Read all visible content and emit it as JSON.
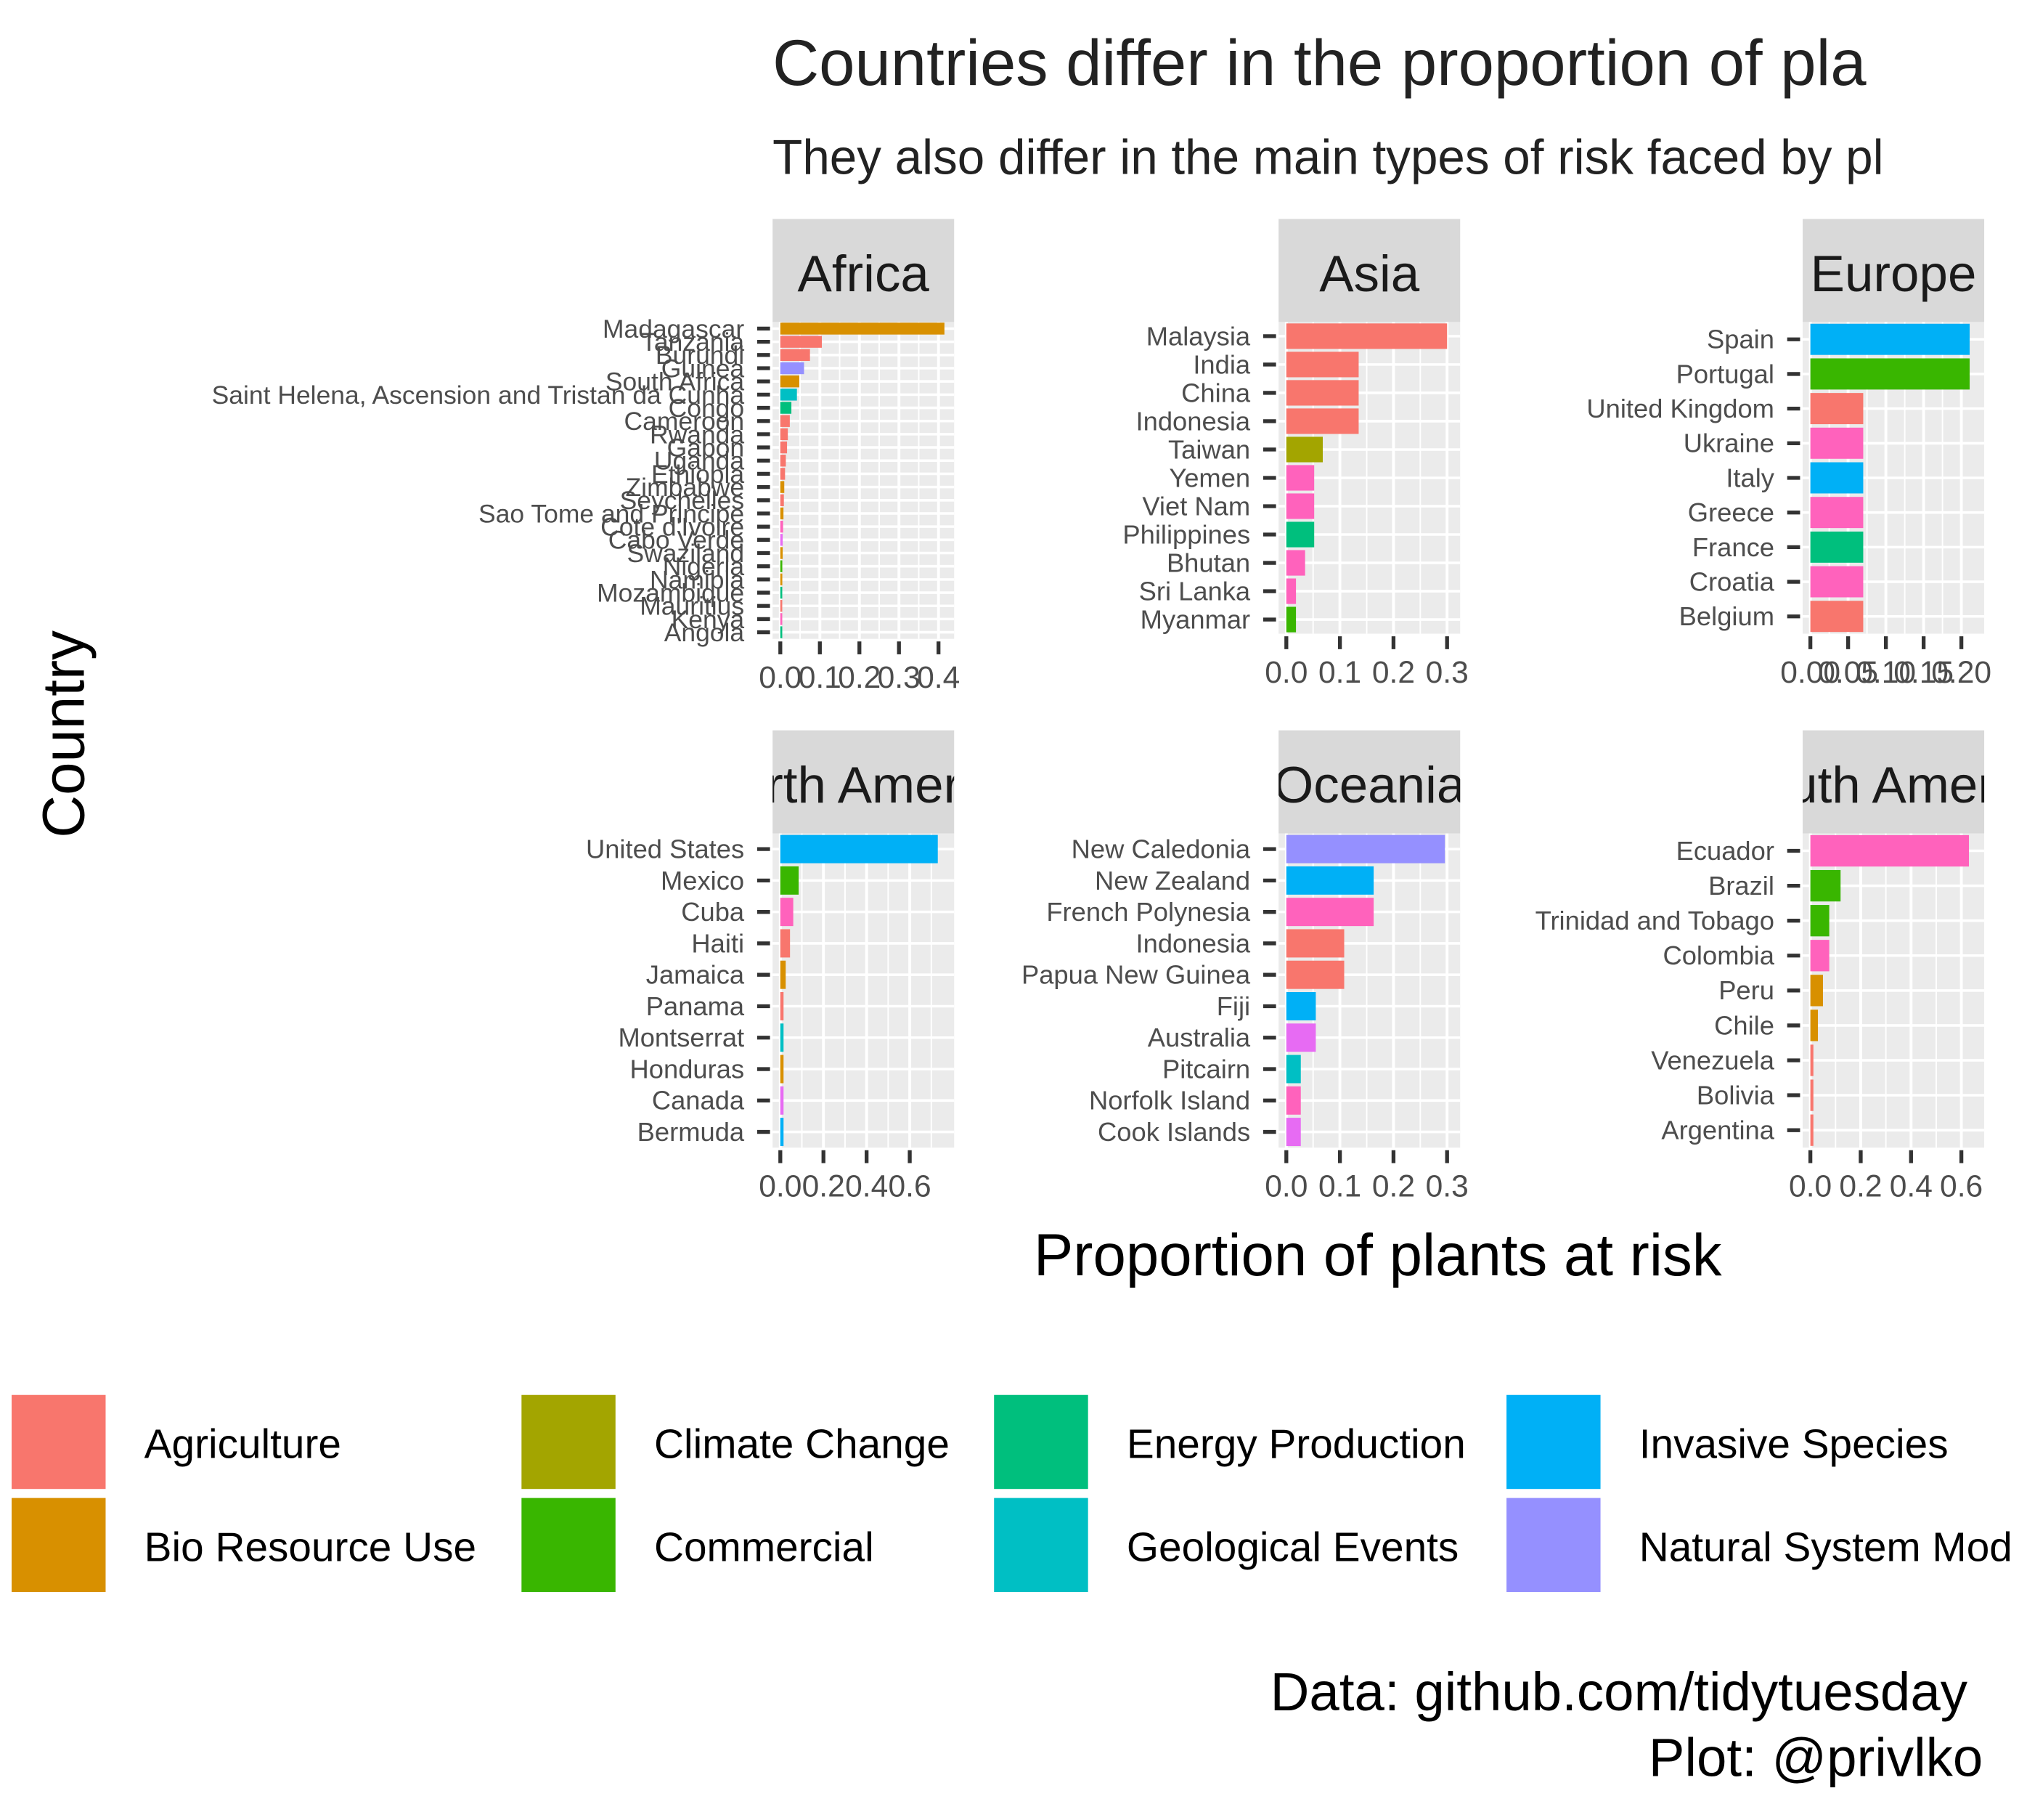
{
  "title": "Countries differ in the proportion of pla",
  "subtitle": "They also differ in the main types of risk faced by pl",
  "xlabel": "Proportion of plants at risk",
  "ylabel": "Country",
  "caption": [
    "Data: github.com/tidytuesday",
    "Plot: @privlko"
  ],
  "colors": {
    "Agriculture": "#F8766D",
    "Bio Resource Use": "#D89000",
    "Climate Change": "#A3A500",
    "Commercial": "#39B600",
    "Energy Production": "#00BF7D",
    "Geological Events": "#00BFC4",
    "Invasive Species": "#00B0F6",
    "Natural System Mod": "#9590FF",
    "Pollution": "#E76BF3",
    "Transportation": "#FF62BC"
  },
  "legend": {
    "position": "bottom",
    "items": [
      "Agriculture",
      "Bio Resource Use",
      "Climate Change",
      "Commercial",
      "Energy Production",
      "Geological Events",
      "Invasive Species",
      "Natural System Mod"
    ]
  },
  "chart_data": {
    "type": "bar",
    "orientation": "horizontal",
    "facet_by": "continent",
    "grid": true,
    "panels": [
      {
        "name": "Africa",
        "xlim": [
          0,
          0.42
        ],
        "xticks": [
          0.0,
          0.1,
          0.2,
          0.3,
          0.4
        ],
        "xtick_labels": [
          "0.0",
          "0.1",
          "0.2",
          "0.3",
          "0.4"
        ],
        "bars": [
          {
            "country": "Madagascar",
            "value": 0.415,
            "risk": "Bio Resource Use"
          },
          {
            "country": "Tanzania",
            "value": 0.105,
            "risk": "Agriculture"
          },
          {
            "country": "Burundi",
            "value": 0.075,
            "risk": "Agriculture"
          },
          {
            "country": "Guinea",
            "value": 0.06,
            "risk": "Natural System Mod"
          },
          {
            "country": "South Africa",
            "value": 0.048,
            "risk": "Bio Resource Use"
          },
          {
            "country": "Saint Helena, Ascension and Tristan da Cunha",
            "value": 0.042,
            "risk": "Geological Events"
          },
          {
            "country": "Congo",
            "value": 0.028,
            "risk": "Energy Production"
          },
          {
            "country": "Cameroon",
            "value": 0.024,
            "risk": "Agriculture"
          },
          {
            "country": "Rwanda",
            "value": 0.019,
            "risk": "Agriculture"
          },
          {
            "country": "Gabon",
            "value": 0.017,
            "risk": "Agriculture"
          },
          {
            "country": "Uganda",
            "value": 0.014,
            "risk": "Agriculture"
          },
          {
            "country": "Ethiopia",
            "value": 0.012,
            "risk": "Agriculture"
          },
          {
            "country": "Zimbabwe",
            "value": 0.01,
            "risk": "Bio Resource Use"
          },
          {
            "country": "Seychelles",
            "value": 0.009,
            "risk": "Agriculture"
          },
          {
            "country": "Sao Tome and Principe",
            "value": 0.008,
            "risk": "Bio Resource Use"
          },
          {
            "country": "Cote d'Ivoire",
            "value": 0.007,
            "risk": "Transportation"
          },
          {
            "country": "Cabo Verde",
            "value": 0.006,
            "risk": "Pollution"
          },
          {
            "country": "Swaziland",
            "value": 0.006,
            "risk": "Bio Resource Use"
          },
          {
            "country": "Nigeria",
            "value": 0.005,
            "risk": "Commercial"
          },
          {
            "country": "Namibia",
            "value": 0.005,
            "risk": "Bio Resource Use"
          },
          {
            "country": "Mozambique",
            "value": 0.004,
            "risk": "Energy Production"
          },
          {
            "country": "Mauritius",
            "value": 0.004,
            "risk": "Agriculture"
          },
          {
            "country": "Kenya",
            "value": 0.003,
            "risk": "Transportation"
          },
          {
            "country": "Angola",
            "value": 0.003,
            "risk": "Energy Production"
          }
        ]
      },
      {
        "name": "Asia",
        "xlim": [
          0,
          0.31
        ],
        "xticks": [
          0.0,
          0.1,
          0.2,
          0.3
        ],
        "xtick_labels": [
          "0.0",
          "0.1",
          "0.2",
          "0.3"
        ],
        "bars": [
          {
            "country": "Malaysia",
            "value": 0.3,
            "risk": "Agriculture"
          },
          {
            "country": "India",
            "value": 0.135,
            "risk": "Agriculture"
          },
          {
            "country": "China",
            "value": 0.135,
            "risk": "Agriculture"
          },
          {
            "country": "Indonesia",
            "value": 0.135,
            "risk": "Agriculture"
          },
          {
            "country": "Taiwan",
            "value": 0.068,
            "risk": "Climate Change"
          },
          {
            "country": "Yemen",
            "value": 0.052,
            "risk": "Transportation"
          },
          {
            "country": "Viet Nam",
            "value": 0.052,
            "risk": "Transportation"
          },
          {
            "country": "Philippines",
            "value": 0.052,
            "risk": "Energy Production"
          },
          {
            "country": "Bhutan",
            "value": 0.035,
            "risk": "Transportation"
          },
          {
            "country": "Sri Lanka",
            "value": 0.018,
            "risk": "Transportation"
          },
          {
            "country": "Myanmar",
            "value": 0.018,
            "risk": "Commercial"
          }
        ]
      },
      {
        "name": "Europe",
        "xlim": [
          0,
          0.22
        ],
        "xticks": [
          0.0,
          0.05,
          0.1,
          0.15,
          0.2
        ],
        "xtick_labels": [
          "0.00",
          "0.05",
          "0.10",
          "0.15",
          "0.20"
        ],
        "bars": [
          {
            "country": "Spain",
            "value": 0.211,
            "risk": "Invasive Species"
          },
          {
            "country": "Portugal",
            "value": 0.211,
            "risk": "Commercial"
          },
          {
            "country": "United Kingdom",
            "value": 0.07,
            "risk": "Agriculture"
          },
          {
            "country": "Ukraine",
            "value": 0.07,
            "risk": "Transportation"
          },
          {
            "country": "Italy",
            "value": 0.07,
            "risk": "Invasive Species"
          },
          {
            "country": "Greece",
            "value": 0.07,
            "risk": "Transportation"
          },
          {
            "country": "France",
            "value": 0.07,
            "risk": "Energy Production"
          },
          {
            "country": "Croatia",
            "value": 0.07,
            "risk": "Transportation"
          },
          {
            "country": "Belgium",
            "value": 0.07,
            "risk": "Agriculture"
          }
        ]
      },
      {
        "name": "North America",
        "xlim": [
          0,
          0.77
        ],
        "xticks": [
          0.0,
          0.2,
          0.4,
          0.6
        ],
        "xtick_labels": [
          "0.0",
          "0.2",
          "0.4",
          "0.6"
        ],
        "bars": [
          {
            "country": "United States",
            "value": 0.73,
            "risk": "Invasive Species"
          },
          {
            "country": "Mexico",
            "value": 0.085,
            "risk": "Commercial"
          },
          {
            "country": "Cuba",
            "value": 0.06,
            "risk": "Transportation"
          },
          {
            "country": "Haiti",
            "value": 0.045,
            "risk": "Agriculture"
          },
          {
            "country": "Jamaica",
            "value": 0.025,
            "risk": "Bio Resource Use"
          },
          {
            "country": "Panama",
            "value": 0.015,
            "risk": "Agriculture"
          },
          {
            "country": "Montserrat",
            "value": 0.015,
            "risk": "Geological Events"
          },
          {
            "country": "Honduras",
            "value": 0.015,
            "risk": "Bio Resource Use"
          },
          {
            "country": "Canada",
            "value": 0.015,
            "risk": "Pollution"
          },
          {
            "country": "Bermuda",
            "value": 0.015,
            "risk": "Invasive Species"
          }
        ]
      },
      {
        "name": "Oceania",
        "xlim": [
          0,
          0.31
        ],
        "xticks": [
          0.0,
          0.1,
          0.2,
          0.3
        ],
        "xtick_labels": [
          "0.0",
          "0.1",
          "0.2",
          "0.3"
        ],
        "bars": [
          {
            "country": "New Caledonia",
            "value": 0.296,
            "risk": "Natural System Mod"
          },
          {
            "country": "New Zealand",
            "value": 0.163,
            "risk": "Invasive Species"
          },
          {
            "country": "French Polynesia",
            "value": 0.163,
            "risk": "Transportation"
          },
          {
            "country": "Indonesia",
            "value": 0.108,
            "risk": "Agriculture"
          },
          {
            "country": "Papua New Guinea",
            "value": 0.108,
            "risk": "Agriculture"
          },
          {
            "country": "Fiji",
            "value": 0.055,
            "risk": "Invasive Species"
          },
          {
            "country": "Australia",
            "value": 0.055,
            "risk": "Pollution"
          },
          {
            "country": "Pitcairn",
            "value": 0.027,
            "risk": "Geological Events"
          },
          {
            "country": "Norfolk Island",
            "value": 0.027,
            "risk": "Transportation"
          },
          {
            "country": "Cook Islands",
            "value": 0.027,
            "risk": "Pollution"
          }
        ]
      },
      {
        "name": "South America",
        "xlim": [
          0,
          0.66
        ],
        "xticks": [
          0.0,
          0.2,
          0.4,
          0.6
        ],
        "xtick_labels": [
          "0.0",
          "0.2",
          "0.4",
          "0.6"
        ],
        "bars": [
          {
            "country": "Ecuador",
            "value": 0.63,
            "risk": "Transportation"
          },
          {
            "country": "Brazil",
            "value": 0.12,
            "risk": "Commercial"
          },
          {
            "country": "Trinidad and Tobago",
            "value": 0.075,
            "risk": "Commercial"
          },
          {
            "country": "Colombia",
            "value": 0.075,
            "risk": "Transportation"
          },
          {
            "country": "Peru",
            "value": 0.05,
            "risk": "Bio Resource Use"
          },
          {
            "country": "Chile",
            "value": 0.03,
            "risk": "Bio Resource Use"
          },
          {
            "country": "Venezuela",
            "value": 0.012,
            "risk": "Agriculture"
          },
          {
            "country": "Bolivia",
            "value": 0.012,
            "risk": "Agriculture"
          },
          {
            "country": "Argentina",
            "value": 0.012,
            "risk": "Agriculture"
          }
        ]
      }
    ]
  }
}
